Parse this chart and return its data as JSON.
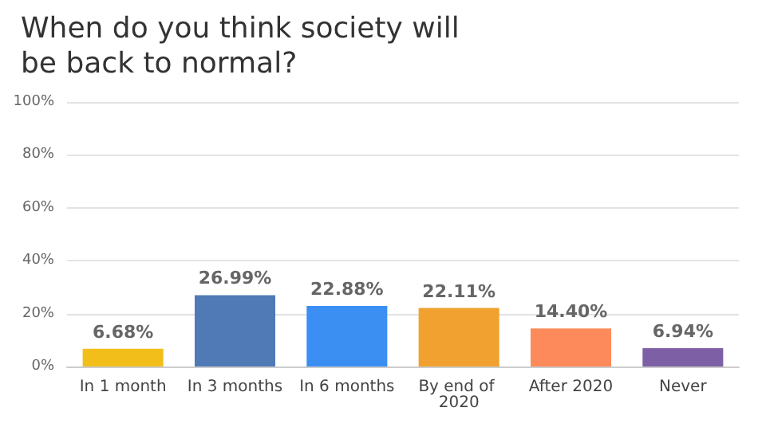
{
  "chart_data": {
    "type": "bar",
    "title": "When do you think society will be back to normal?",
    "categories": [
      "In 1 month",
      "In 3 months",
      "In 6 months",
      "By end of 2020",
      "After 2020",
      "Never"
    ],
    "values": [
      6.68,
      26.99,
      22.88,
      22.11,
      14.4,
      6.94
    ],
    "colors": [
      "#f2be1a",
      "#4f7ab5",
      "#3b8ef2",
      "#f0a12f",
      "#fd8a5a",
      "#7d5fa6"
    ],
    "value_labels": [
      "6.68%",
      "26.99%",
      "22.88%",
      "22.11%",
      "14.40%",
      "6.94%"
    ],
    "ylim": [
      0,
      100
    ],
    "yticks": [
      {
        "value": 0,
        "label": "0%"
      },
      {
        "value": 20,
        "label": "20%"
      },
      {
        "value": 40,
        "label": "40%"
      },
      {
        "value": 60,
        "label": "60%"
      },
      {
        "value": 80,
        "label": "80%"
      },
      {
        "value": 100,
        "label": "100%"
      }
    ],
    "grid": "y"
  }
}
